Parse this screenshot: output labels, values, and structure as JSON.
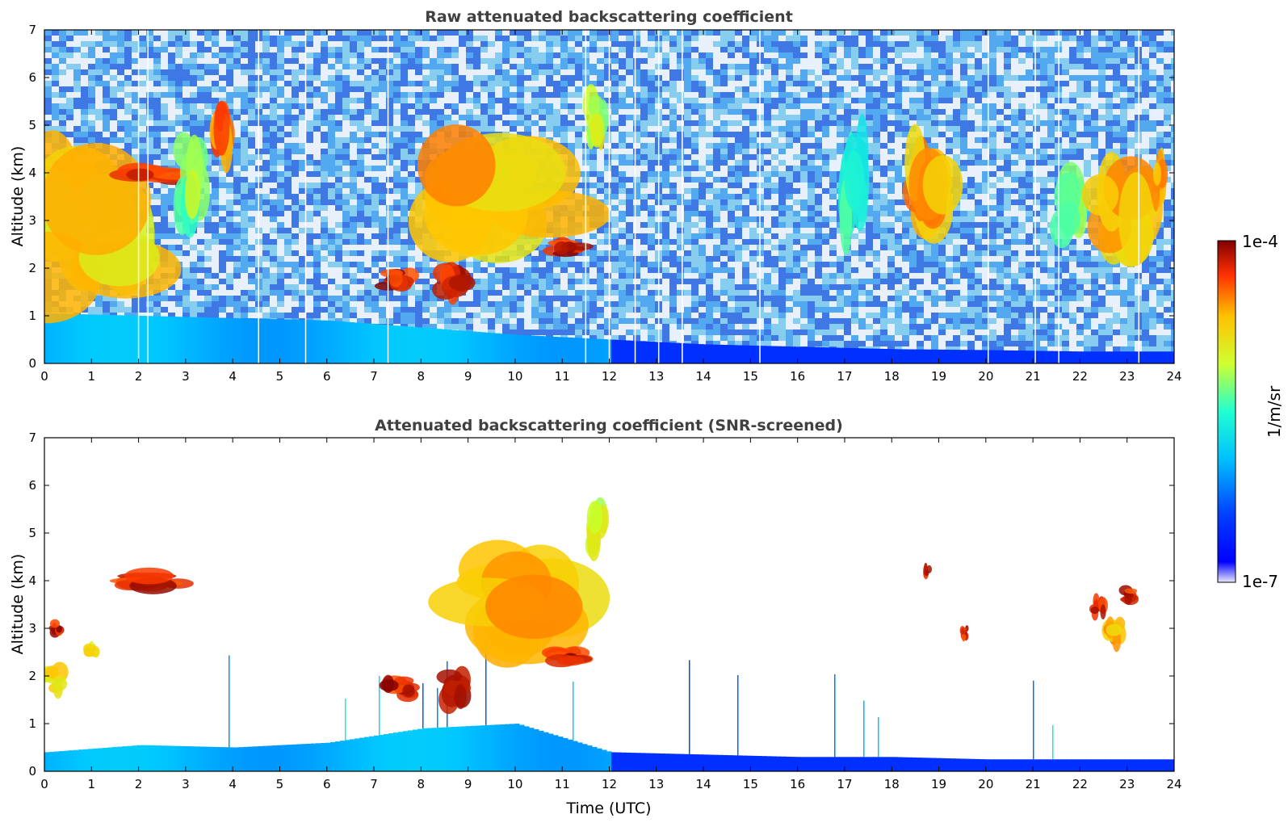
{
  "chart_data": [
    {
      "type": "heatmap",
      "title": "Raw attenuated backscattering coefficient",
      "xlabel": "",
      "ylabel": "Altitude (km)",
      "xlim": [
        0,
        24
      ],
      "ylim": [
        0,
        7
      ],
      "x_ticks": [
        "0",
        "1",
        "2",
        "3",
        "4",
        "5",
        "6",
        "7",
        "8",
        "9",
        "10",
        "11",
        "12",
        "13",
        "14",
        "15",
        "16",
        "17",
        "18",
        "19",
        "20",
        "21",
        "22",
        "23",
        "24"
      ],
      "y_ticks": [
        "0",
        "1",
        "2",
        "3",
        "4",
        "5",
        "6",
        "7"
      ],
      "boundary_layer_top_km": [
        [
          0,
          1.05
        ],
        [
          2,
          1.0
        ],
        [
          4,
          0.95
        ],
        [
          6,
          0.9
        ],
        [
          8,
          0.75
        ],
        [
          10,
          0.6
        ],
        [
          12,
          0.5
        ],
        [
          14,
          0.4
        ],
        [
          16,
          0.35
        ],
        [
          18,
          0.3
        ],
        [
          20,
          0.28
        ],
        [
          22,
          0.25
        ],
        [
          24,
          0.25
        ]
      ],
      "layers": [
        {
          "t0": 0.0,
          "t1": 2.0,
          "z0": 1.5,
          "z1": 3.8,
          "level": 0.8
        },
        {
          "t0": 1.8,
          "t1": 2.9,
          "z0": 3.85,
          "z1": 4.15,
          "level": 1.0
        },
        {
          "t0": 2.9,
          "t1": 3.3,
          "z0": 3.2,
          "z1": 4.5,
          "level": 0.65
        },
        {
          "t0": 3.6,
          "t1": 3.9,
          "z0": 4.2,
          "z1": 5.2,
          "level": 0.9
        },
        {
          "t0": 7.3,
          "t1": 7.8,
          "z0": 1.6,
          "z1": 1.9,
          "level": 1.0
        },
        {
          "t0": 8.5,
          "t1": 9.0,
          "z0": 1.5,
          "z1": 2.0,
          "level": 1.0
        },
        {
          "t0": 8.5,
          "t1": 10.8,
          "z0": 2.9,
          "z1": 4.4,
          "level": 0.82
        },
        {
          "t0": 10.8,
          "t1": 11.4,
          "z0": 2.3,
          "z1": 2.55,
          "level": 1.0
        },
        {
          "t0": 11.6,
          "t1": 11.9,
          "z0": 4.7,
          "z1": 5.5,
          "level": 0.7
        },
        {
          "t0": 17.0,
          "t1": 17.4,
          "z0": 3.0,
          "z1": 4.6,
          "level": 0.55
        },
        {
          "t0": 18.3,
          "t1": 19.1,
          "z0": 3.0,
          "z1": 4.5,
          "level": 0.85
        },
        {
          "t0": 21.5,
          "t1": 22.0,
          "z0": 2.8,
          "z1": 3.8,
          "level": 0.6
        },
        {
          "t0": 22.3,
          "t1": 23.3,
          "z0": 2.3,
          "z1": 4.0,
          "level": 0.85
        },
        {
          "t0": 23.6,
          "t1": 23.8,
          "z0": 3.3,
          "z1": 4.1,
          "level": 0.85
        }
      ]
    },
    {
      "type": "heatmap",
      "title": "Attenuated backscattering coefficient (SNR-screened)",
      "xlabel": "Time (UTC)",
      "ylabel": "Altitude (km)",
      "xlim": [
        0,
        24
      ],
      "ylim": [
        0,
        7
      ],
      "x_ticks": [
        "0",
        "1",
        "2",
        "3",
        "4",
        "5",
        "6",
        "7",
        "8",
        "9",
        "10",
        "11",
        "12",
        "13",
        "14",
        "15",
        "16",
        "17",
        "18",
        "19",
        "20",
        "21",
        "22",
        "23",
        "24"
      ],
      "y_ticks": [
        "0",
        "1",
        "2",
        "3",
        "4",
        "5",
        "6",
        "7"
      ],
      "boundary_layer_top_km": [
        [
          0,
          0.4
        ],
        [
          2,
          0.55
        ],
        [
          4,
          0.5
        ],
        [
          6,
          0.6
        ],
        [
          8,
          0.9
        ],
        [
          10,
          1.0
        ],
        [
          12,
          0.4
        ],
        [
          14,
          0.35
        ],
        [
          16,
          0.3
        ],
        [
          18,
          0.3
        ],
        [
          20,
          0.25
        ],
        [
          22,
          0.25
        ],
        [
          24,
          0.25
        ]
      ],
      "layers": [
        {
          "t0": 0.0,
          "t1": 0.35,
          "z0": 1.7,
          "z1": 2.1,
          "level": 0.78
        },
        {
          "t0": 0.15,
          "t1": 0.35,
          "z0": 2.9,
          "z1": 3.1,
          "level": 1.0
        },
        {
          "t0": 0.9,
          "t1": 1.1,
          "z0": 2.45,
          "z1": 2.65,
          "level": 0.78
        },
        {
          "t0": 1.8,
          "t1": 2.9,
          "z0": 3.85,
          "z1": 4.15,
          "level": 1.0
        },
        {
          "t0": 7.3,
          "t1": 7.8,
          "z0": 1.6,
          "z1": 1.95,
          "level": 1.0
        },
        {
          "t0": 8.5,
          "t1": 9.0,
          "z0": 1.5,
          "z1": 2.0,
          "level": 1.0
        },
        {
          "t0": 8.5,
          "t1": 10.8,
          "z0": 2.9,
          "z1": 4.4,
          "level": 0.82
        },
        {
          "t0": 10.8,
          "t1": 11.4,
          "z0": 2.3,
          "z1": 2.55,
          "level": 1.0
        },
        {
          "t0": 11.6,
          "t1": 11.9,
          "z0": 4.7,
          "z1": 5.5,
          "level": 0.7
        },
        {
          "t0": 18.7,
          "t1": 18.8,
          "z0": 4.1,
          "z1": 4.3,
          "level": 1.0
        },
        {
          "t0": 19.5,
          "t1": 19.6,
          "z0": 2.8,
          "z1": 3.0,
          "level": 1.0
        },
        {
          "t0": 22.3,
          "t1": 22.5,
          "z0": 3.3,
          "z1": 3.6,
          "level": 1.0
        },
        {
          "t0": 22.6,
          "t1": 22.9,
          "z0": 2.7,
          "z1": 3.1,
          "level": 0.85
        },
        {
          "t0": 22.9,
          "t1": 23.2,
          "z0": 3.6,
          "z1": 3.8,
          "level": 1.0
        }
      ]
    }
  ],
  "colorbar": {
    "label": "1/m/sr",
    "max_label": "1e-4",
    "min_label": "1e-7"
  }
}
